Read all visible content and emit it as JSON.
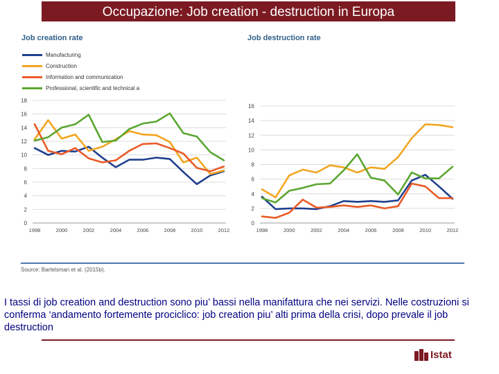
{
  "header": {
    "title": "Occupazione: Job creation - destruction in Europa"
  },
  "chart_data": [
    {
      "type": "line",
      "title": "Job creation rate",
      "xlabel": "",
      "ylabel": "",
      "x": [
        1998,
        1999,
        2000,
        2001,
        2002,
        2003,
        2004,
        2005,
        2006,
        2007,
        2008,
        2009,
        2010,
        2011,
        2012
      ],
      "xticks": [
        "1998",
        "2000",
        "2002",
        "2004",
        "2006",
        "2008",
        "2010",
        "2012"
      ],
      "yticks": [
        "0",
        "2",
        "4",
        "6",
        "8",
        "10",
        "12",
        "14",
        "16",
        "18"
      ],
      "ylim": [
        0,
        18
      ],
      "grid": true,
      "legend_position": "top-left",
      "series": [
        {
          "name": "Manufacturing",
          "color": "#1f3f8f",
          "values": [
            11.0,
            10.0,
            10.6,
            10.5,
            11.2,
            9.6,
            8.2,
            9.3,
            9.3,
            9.6,
            9.4,
            7.5,
            5.7,
            7.0,
            7.6
          ]
        },
        {
          "name": "Construction",
          "color": "#f2a51f",
          "values": [
            12.3,
            15.1,
            12.4,
            13.0,
            10.6,
            11.2,
            12.3,
            13.5,
            13.0,
            12.9,
            11.9,
            8.9,
            9.6,
            7.2,
            7.7
          ]
        },
        {
          "name": "Information and communication",
          "color": "#ea5a26",
          "values": [
            14.5,
            10.6,
            10.1,
            11.0,
            9.5,
            8.9,
            9.2,
            10.6,
            11.6,
            11.7,
            11.0,
            10.2,
            8.1,
            7.6,
            8.3
          ]
        },
        {
          "name": "Professional, scientific and technical a",
          "color": "#5aa630",
          "values": [
            12.1,
            12.6,
            14.0,
            14.5,
            15.9,
            11.9,
            12.1,
            13.8,
            14.6,
            14.9,
            16.1,
            13.2,
            12.7,
            10.4,
            9.2
          ]
        }
      ]
    },
    {
      "type": "line",
      "title": "Job destruction rate",
      "xlabel": "",
      "ylabel": "",
      "x": [
        1998,
        1999,
        2000,
        2001,
        2002,
        2003,
        2004,
        2005,
        2006,
        2007,
        2008,
        2009,
        2010,
        2011,
        2012
      ],
      "xticks": [
        "1998",
        "2000",
        "2002",
        "2004",
        "2006",
        "2008",
        "2010",
        "2012"
      ],
      "yticks": [
        "0",
        "2",
        "4",
        "6",
        "8",
        "10",
        "12",
        "14",
        "16"
      ],
      "ylim": [
        0,
        16
      ],
      "grid": true,
      "series": [
        {
          "name": "Manufacturing",
          "color": "#1f3f8f",
          "values": [
            3.6,
            1.9,
            2.0,
            2.0,
            1.9,
            2.3,
            3.0,
            2.9,
            3.0,
            2.9,
            3.1,
            5.8,
            6.6,
            5.0,
            3.3
          ]
        },
        {
          "name": "Construction",
          "color": "#f2a51f",
          "values": [
            4.6,
            3.5,
            6.5,
            7.3,
            6.9,
            7.9,
            7.6,
            6.9,
            7.6,
            7.4,
            9.0,
            11.6,
            13.5,
            13.4,
            13.1
          ]
        },
        {
          "name": "Information and communication",
          "color": "#ea5a26",
          "values": [
            0.9,
            0.7,
            1.4,
            3.2,
            2.1,
            2.2,
            2.4,
            2.2,
            2.4,
            2.0,
            2.3,
            5.4,
            5.0,
            3.4,
            3.4
          ]
        },
        {
          "name": "Professional, scientific and technical a",
          "color": "#5aa630",
          "values": [
            3.4,
            2.8,
            4.4,
            4.8,
            5.3,
            5.4,
            7.2,
            9.4,
            6.2,
            5.8,
            3.9,
            6.9,
            6.1,
            6.1,
            7.7
          ]
        }
      ]
    }
  ],
  "source": "Source: Bartelsman et al. (2015b).",
  "commentary": "I tassi di job creation and destruction sono piu’ bassi nella manifattura che nei servizi. Nelle costruzioni si conferma ‘andamento fortemente prociclico: job creation piu’ alti prima della crisi, dopo prevale il job destruction",
  "logo": {
    "text": "Istat",
    "color": "#7b1a22"
  }
}
